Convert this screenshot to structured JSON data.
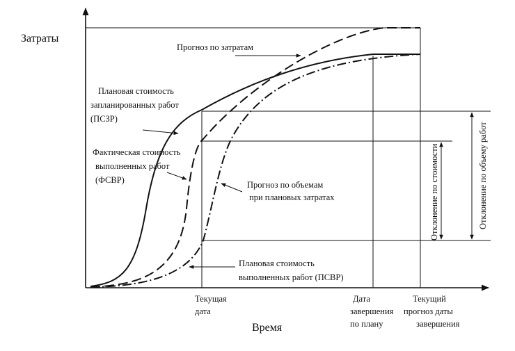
{
  "axes": {
    "y_label": "Затраты",
    "x_label": "Время"
  },
  "curves": {
    "forecast_costs": "Прогноз по затратам",
    "pszr": [
      "Плановая стоимость",
      "запланированных работ",
      "(ПСЗР)"
    ],
    "fsvr": [
      "Фактическая стоимость",
      "выполненных работ",
      "(ФСВР)"
    ],
    "volume_forecast": [
      "Прогноз по объемам",
      "при плановых затратах"
    ],
    "psvr": [
      "Плановая стоимость",
      "выполненных  работ (ПСВР)"
    ]
  },
  "deviations": {
    "cost": "Отклонение по стоимости",
    "volume": "Отклонение по объему работ"
  },
  "x_marks": {
    "current_date": [
      "Текущая",
      "дата"
    ],
    "planned_completion": [
      "Дата",
      "завершения",
      "по плану"
    ],
    "forecast_completion": [
      "Текущий",
      "прогноз даты",
      "завершения"
    ]
  }
}
